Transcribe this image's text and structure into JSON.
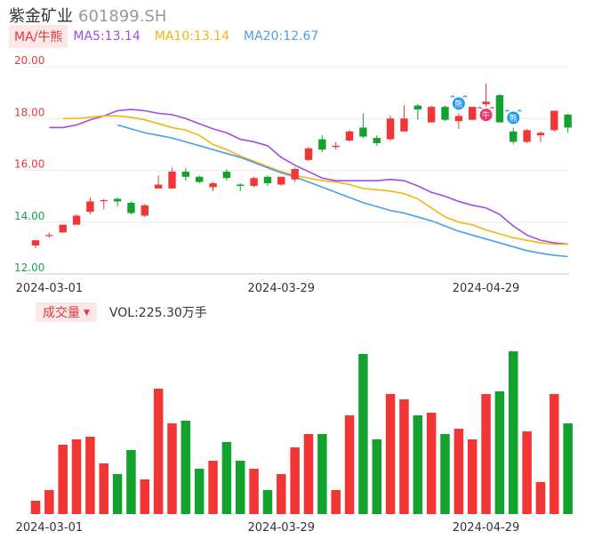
{
  "header": {
    "stock_name": "紫金矿业",
    "stock_code": "601899.SH"
  },
  "ma_legend": {
    "tag": "MA/牛熊",
    "ma5": "MA5:13.14",
    "ma10": "MA10:13.14",
    "ma20": "MA20:12.67",
    "colors": {
      "ma5": "#a04ce6",
      "ma10": "#f5b40f",
      "ma20": "#4b9fe8"
    }
  },
  "volume_legend": {
    "tag": "成交量",
    "arrow_icon": "caret-down-icon",
    "text": "VOL:225.30万手"
  },
  "colors": {
    "up": "#f23535",
    "down": "#14a22e"
  },
  "chart_data": {
    "type": "candlestick",
    "price_axis": {
      "ticks": [
        12,
        14,
        16,
        18,
        20
      ],
      "tick_labels": [
        "12.00",
        "14.00",
        "16.00",
        "18.00",
        "20.00"
      ],
      "ylim": [
        12,
        20
      ]
    },
    "x_labels": [
      "2024-03-01",
      "2024-03-29",
      "2024-04-29"
    ],
    "x_label_index": [
      1,
      18,
      33
    ],
    "candles": [
      {
        "o": 13.1,
        "h": 13.3,
        "l": 13.0,
        "c": 13.3
      },
      {
        "o": 13.5,
        "h": 13.6,
        "l": 13.4,
        "c": 13.5
      },
      {
        "o": 13.6,
        "h": 13.9,
        "l": 13.6,
        "c": 13.9
      },
      {
        "o": 13.9,
        "h": 14.3,
        "l": 13.9,
        "c": 14.25
      },
      {
        "o": 14.4,
        "h": 14.95,
        "l": 14.3,
        "c": 14.8
      },
      {
        "o": 14.85,
        "h": 14.9,
        "l": 14.5,
        "c": 14.85
      },
      {
        "o": 14.9,
        "h": 14.95,
        "l": 14.6,
        "c": 14.8
      },
      {
        "o": 14.75,
        "h": 14.8,
        "l": 14.3,
        "c": 14.35
      },
      {
        "o": 14.25,
        "h": 14.7,
        "l": 14.2,
        "c": 14.65
      },
      {
        "o": 15.3,
        "h": 15.8,
        "l": 15.3,
        "c": 15.45
      },
      {
        "o": 15.3,
        "h": 16.1,
        "l": 15.3,
        "c": 15.95
      },
      {
        "o": 15.95,
        "h": 16.1,
        "l": 15.6,
        "c": 15.75
      },
      {
        "o": 15.75,
        "h": 15.8,
        "l": 15.5,
        "c": 15.55
      },
      {
        "o": 15.35,
        "h": 15.55,
        "l": 15.2,
        "c": 15.5
      },
      {
        "o": 15.95,
        "h": 16.05,
        "l": 15.6,
        "c": 15.7
      },
      {
        "o": 15.45,
        "h": 15.5,
        "l": 15.2,
        "c": 15.4
      },
      {
        "o": 15.4,
        "h": 15.75,
        "l": 15.35,
        "c": 15.7
      },
      {
        "o": 15.75,
        "h": 15.8,
        "l": 15.4,
        "c": 15.5
      },
      {
        "o": 15.45,
        "h": 15.75,
        "l": 15.4,
        "c": 15.75
      },
      {
        "o": 15.65,
        "h": 16.1,
        "l": 15.55,
        "c": 16.05
      },
      {
        "o": 16.4,
        "h": 16.9,
        "l": 16.35,
        "c": 16.85
      },
      {
        "o": 17.2,
        "h": 17.35,
        "l": 16.7,
        "c": 16.8
      },
      {
        "o": 16.9,
        "h": 17.1,
        "l": 16.8,
        "c": 16.95
      },
      {
        "o": 17.15,
        "h": 17.55,
        "l": 17.1,
        "c": 17.5
      },
      {
        "o": 17.65,
        "h": 18.2,
        "l": 17.25,
        "c": 17.3
      },
      {
        "o": 17.25,
        "h": 17.35,
        "l": 16.95,
        "c": 17.05
      },
      {
        "o": 17.2,
        "h": 18.1,
        "l": 17.15,
        "c": 18.0
      },
      {
        "o": 17.5,
        "h": 18.5,
        "l": 17.5,
        "c": 18.0
      },
      {
        "o": 18.5,
        "h": 18.55,
        "l": 17.95,
        "c": 18.35
      },
      {
        "o": 17.85,
        "h": 18.5,
        "l": 17.85,
        "c": 18.45
      },
      {
        "o": 18.45,
        "h": 18.5,
        "l": 17.9,
        "c": 17.95
      },
      {
        "o": 17.9,
        "h": 18.2,
        "l": 17.6,
        "c": 18.1
      },
      {
        "o": 17.95,
        "h": 18.45,
        "l": 17.95,
        "c": 18.45
      },
      {
        "o": 18.55,
        "h": 19.35,
        "l": 18.45,
        "c": 18.65
      },
      {
        "o": 18.9,
        "h": 18.95,
        "l": 17.85,
        "c": 17.85
      },
      {
        "o": 17.5,
        "h": 17.65,
        "l": 17.0,
        "c": 17.1
      },
      {
        "o": 17.1,
        "h": 17.6,
        "l": 17.05,
        "c": 17.55
      },
      {
        "o": 17.35,
        "h": 17.5,
        "l": 17.1,
        "c": 17.45
      },
      {
        "o": 17.55,
        "h": 18.3,
        "l": 17.5,
        "c": 18.3
      },
      {
        "o": 18.15,
        "h": 18.2,
        "l": 17.45,
        "c": 17.65
      }
    ],
    "series": [
      {
        "name": "MA5",
        "color": "#a04ce6",
        "values": [
          17.65,
          17.65,
          17.75,
          17.95,
          18.1,
          18.3,
          18.35,
          18.3,
          18.2,
          18.15,
          18.0,
          17.8,
          17.6,
          17.45,
          17.2,
          17.1,
          16.95,
          16.5,
          16.2,
          15.95,
          15.7,
          15.6,
          15.6,
          15.6,
          15.6,
          15.65,
          15.6,
          15.4,
          15.15,
          15.0,
          14.8,
          14.65,
          14.55,
          14.3,
          13.85,
          13.5,
          13.3,
          13.2,
          13.15
        ]
      },
      {
        "name": "MA10",
        "color": "#f5b40f",
        "values": [
          18.0,
          18.0,
          18.05,
          18.1,
          18.1,
          18.05,
          17.95,
          17.8,
          17.65,
          17.55,
          17.35,
          17.0,
          16.8,
          16.55,
          16.35,
          16.15,
          15.95,
          15.8,
          15.7,
          15.6,
          15.55,
          15.45,
          15.3,
          15.25,
          15.2,
          15.1,
          14.9,
          14.55,
          14.2,
          14.0,
          13.9,
          13.7,
          13.55,
          13.4,
          13.3,
          13.2,
          13.15,
          13.14
        ]
      },
      {
        "name": "MA20",
        "color": "#4b9fe8",
        "values": [
          17.75,
          17.6,
          17.45,
          17.35,
          17.25,
          17.1,
          16.95,
          16.8,
          16.65,
          16.5,
          16.3,
          16.1,
          15.9,
          15.75,
          15.55,
          15.35,
          15.15,
          14.95,
          14.75,
          14.6,
          14.45,
          14.35,
          14.2,
          14.05,
          13.85,
          13.65,
          13.5,
          13.35,
          13.2,
          13.05,
          12.9,
          12.8,
          12.72,
          12.67
        ]
      }
    ],
    "volume": [
      5,
      9,
      26,
      28,
      29,
      19,
      15,
      24,
      13,
      47,
      34,
      35,
      17,
      20,
      27,
      20,
      17,
      9,
      15,
      25,
      30,
      30,
      9,
      37,
      60,
      28,
      45,
      43,
      37,
      38,
      30,
      32,
      28,
      45,
      46,
      61,
      31,
      12,
      45,
      34
    ],
    "volume_ylim": [
      0,
      62
    ],
    "markers": [
      {
        "index": 31,
        "label": "熊",
        "type": "bear",
        "color": "#1e9bf0"
      },
      {
        "index": 33,
        "label": "牛",
        "type": "bull",
        "color": "#f0366a"
      },
      {
        "index": 35,
        "label": "熊",
        "type": "bear",
        "color": "#1e9bf0"
      }
    ]
  }
}
